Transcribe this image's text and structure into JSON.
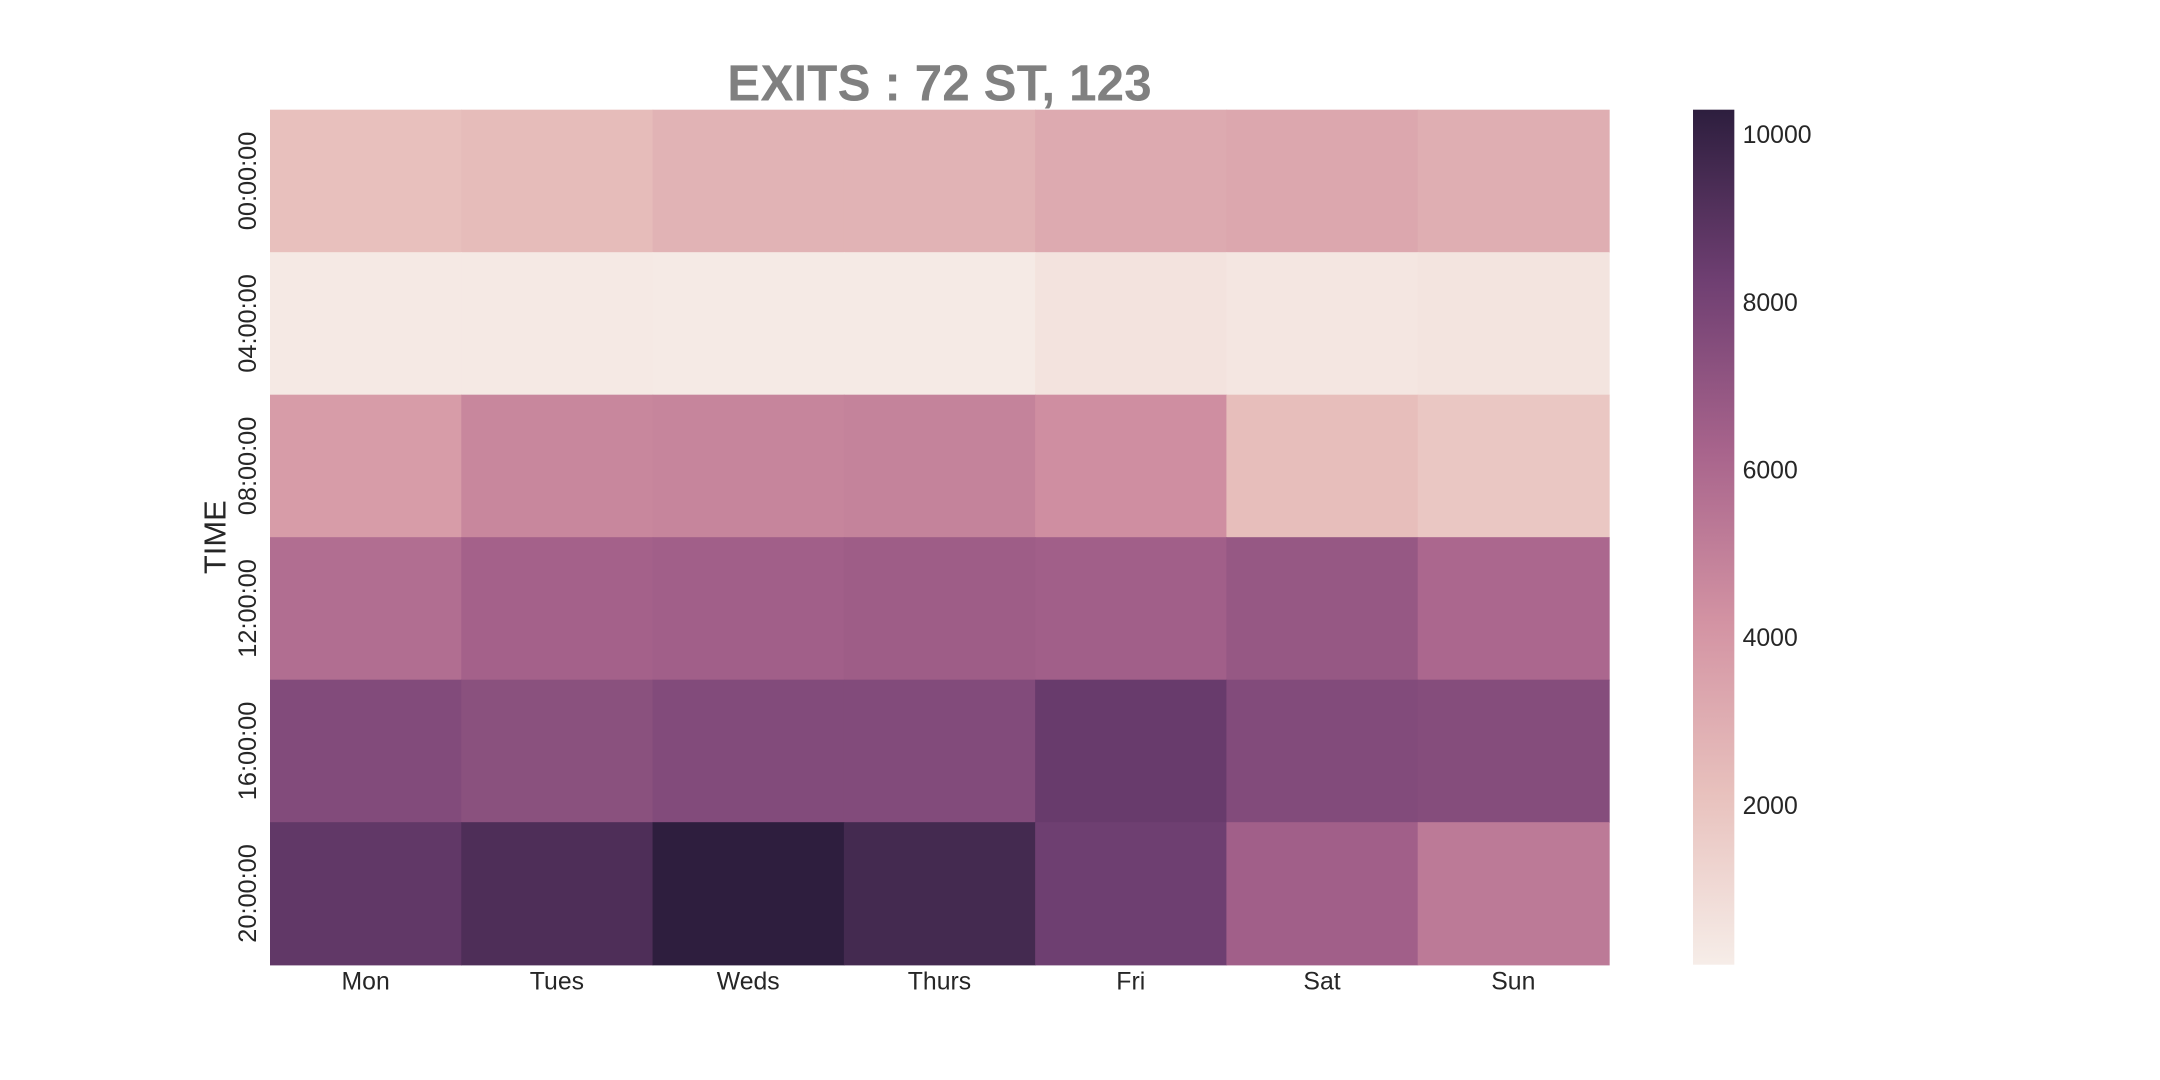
{
  "chart_data": {
    "type": "heatmap",
    "title": "EXITS : 72 ST, 123",
    "ylabel": "TIME",
    "x": [
      "Mon",
      "Tues",
      "Weds",
      "Thurs",
      "Fri",
      "Sat",
      "Sun"
    ],
    "y": [
      "00:00:00",
      "04:00:00",
      "08:00:00",
      "12:00:00",
      "16:00:00",
      "20:00:00"
    ],
    "values": [
      [
        2200,
        2400,
        2800,
        2800,
        3200,
        3300,
        3000
      ],
      [
        300,
        300,
        250,
        250,
        600,
        450,
        550
      ],
      [
        3800,
        4700,
        4800,
        4900,
        4400,
        2300,
        1900
      ],
      [
        5800,
        6400,
        6500,
        6600,
        6500,
        6900,
        6100
      ],
      [
        7600,
        7300,
        7600,
        7600,
        8500,
        7600,
        7500
      ],
      [
        8700,
        9300,
        10300,
        9600,
        8300,
        6500,
        5300
      ]
    ],
    "clim": [
      122,
      10319
    ],
    "cticks": [
      2000,
      4000,
      6000,
      8000,
      10000
    ],
    "colorscale": [
      "#f6ede8",
      "#e8c1bd",
      "#d393a3",
      "#a8648c",
      "#6f3f72",
      "#2d1e3e"
    ]
  }
}
